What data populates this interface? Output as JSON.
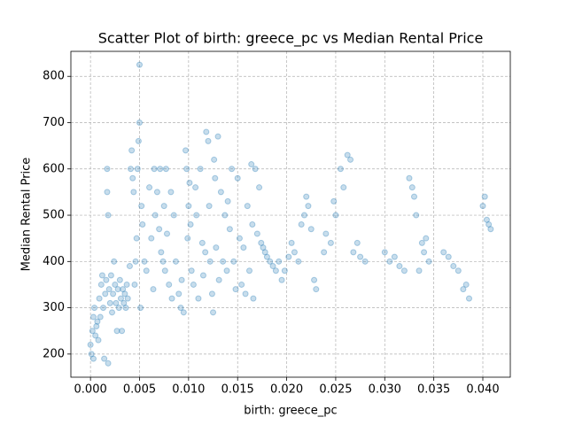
{
  "chart_data": {
    "type": "scatter",
    "title": "Scatter Plot of birth: greece_pc vs Median Rental Price",
    "x_label": "birth: greece_pc",
    "y_label": "Median Rental Price",
    "color": "#1f77b4",
    "grid": true,
    "xlim": [
      -0.002,
      0.0428
    ],
    "ylim": [
      150,
      854
    ],
    "xticks": [
      {
        "value": 0,
        "label": "0.000"
      },
      {
        "value": 0.005,
        "label": "0.005"
      },
      {
        "value": 0.01,
        "label": "0.010"
      },
      {
        "value": 0.015,
        "label": "0.015"
      },
      {
        "value": 0.02,
        "label": "0.020"
      },
      {
        "value": 0.025,
        "label": "0.025"
      },
      {
        "value": 0.03,
        "label": "0.030"
      },
      {
        "value": 0.035,
        "label": "0.035"
      },
      {
        "value": 0.04,
        "label": "0.040"
      }
    ],
    "yticks": [
      200,
      300,
      400,
      500,
      600,
      700,
      800
    ],
    "x": [
      0,
      0.0002,
      0.0003,
      0.0001,
      0.0004,
      0.0005,
      0.0006,
      0.0003,
      0.0007,
      0.0008,
      0.0009,
      0.001,
      0.0011,
      0.0012,
      0.0013,
      0.0014,
      0.0015,
      0.0016,
      0.0017,
      0.0017,
      0.0018,
      0.0018,
      0.0019,
      0.002,
      0.0021,
      0.0022,
      0.0023,
      0.0024,
      0.0025,
      0.0026,
      0.0027,
      0.0028,
      0.0029,
      0.003,
      0.0031,
      0.0032,
      0.0033,
      0.0034,
      0.0035,
      0.0036,
      0.0037,
      0.0038,
      0.004,
      0.0041,
      0.0042,
      0.0043,
      0.0044,
      0.0045,
      0.0046,
      0.0047,
      0.0048,
      0.0049,
      0.005,
      0.005,
      0.0051,
      0.0052,
      0.0053,
      0.0055,
      0.0057,
      0.006,
      0.0062,
      0.0064,
      0.0065,
      0.0066,
      0.0068,
      0.007,
      0.0071,
      0.0072,
      0.0074,
      0.0075,
      0.0076,
      0.0077,
      0.0078,
      0.008,
      0.0082,
      0.0083,
      0.0085,
      0.0087,
      0.009,
      0.0092,
      0.0093,
      0.0095,
      0.0097,
      0.0098,
      0.0099,
      0.01,
      0.0101,
      0.0102,
      0.0103,
      0.0105,
      0.0107,
      0.0108,
      0.011,
      0.0112,
      0.0114,
      0.0115,
      0.0117,
      0.0118,
      0.012,
      0.0121,
      0.0122,
      0.0124,
      0.0125,
      0.0126,
      0.0127,
      0.0128,
      0.013,
      0.0131,
      0.0133,
      0.0135,
      0.0137,
      0.0139,
      0.014,
      0.0142,
      0.0144,
      0.0146,
      0.0148,
      0.015,
      0.0152,
      0.0154,
      0.0156,
      0.0158,
      0.016,
      0.0162,
      0.0164,
      0.0165,
      0.0166,
      0.0168,
      0.017,
      0.0172,
      0.0174,
      0.0176,
      0.0178,
      0.018,
      0.0183,
      0.0186,
      0.0189,
      0.0192,
      0.0195,
      0.0198,
      0.0202,
      0.0205,
      0.0208,
      0.0212,
      0.0215,
      0.0218,
      0.022,
      0.0222,
      0.0225,
      0.0228,
      0.023,
      0.0238,
      0.024,
      0.0245,
      0.0248,
      0.025,
      0.0255,
      0.0258,
      0.0262,
      0.0265,
      0.0268,
      0.0272,
      0.0275,
      0.028,
      0.03,
      0.0305,
      0.031,
      0.0315,
      0.032,
      0.0325,
      0.0328,
      0.033,
      0.0332,
      0.0335,
      0.0338,
      0.034,
      0.0342,
      0.0345,
      0.036,
      0.0365,
      0.037,
      0.0375,
      0.038,
      0.0383,
      0.0386,
      0.04,
      0.0402,
      0.0404,
      0.0406,
      0.0408
    ],
    "values": [
      220,
      250,
      280,
      200,
      300,
      240,
      260,
      190,
      270,
      230,
      320,
      280,
      350,
      370,
      300,
      190,
      330,
      360,
      600,
      550,
      500,
      180,
      340,
      310,
      370,
      290,
      330,
      400,
      350,
      310,
      250,
      340,
      300,
      360,
      320,
      250,
      340,
      310,
      330,
      300,
      350,
      320,
      390,
      600,
      640,
      580,
      550,
      350,
      400,
      450,
      600,
      660,
      825,
      700,
      300,
      520,
      480,
      400,
      380,
      560,
      450,
      340,
      600,
      500,
      550,
      470,
      600,
      420,
      400,
      520,
      380,
      600,
      460,
      350,
      550,
      320,
      500,
      400,
      330,
      300,
      360,
      290,
      640,
      600,
      450,
      520,
      570,
      480,
      380,
      350,
      560,
      500,
      320,
      600,
      440,
      370,
      420,
      680,
      660,
      520,
      400,
      330,
      290,
      620,
      580,
      430,
      670,
      360,
      550,
      400,
      500,
      380,
      530,
      470,
      600,
      400,
      340,
      580,
      450,
      350,
      430,
      330,
      520,
      380,
      610,
      480,
      320,
      600,
      460,
      560,
      440,
      430,
      420,
      410,
      400,
      390,
      380,
      400,
      360,
      380,
      410,
      440,
      420,
      400,
      480,
      500,
      540,
      520,
      470,
      360,
      340,
      420,
      460,
      440,
      530,
      500,
      600,
      560,
      630,
      620,
      420,
      440,
      410,
      400,
      420,
      400,
      410,
      390,
      380,
      580,
      560,
      540,
      500,
      380,
      440,
      420,
      450,
      400,
      420,
      410,
      390,
      380,
      340,
      350,
      320,
      520,
      540,
      490,
      480,
      470
    ]
  }
}
